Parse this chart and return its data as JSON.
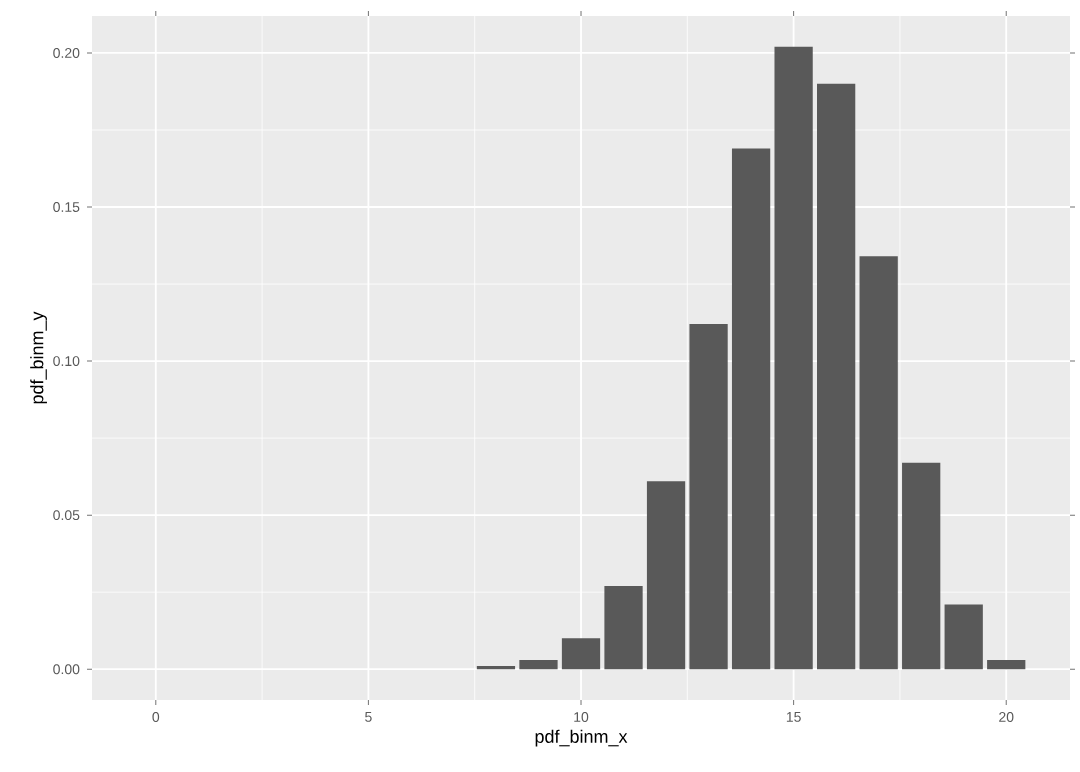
{
  "chart_data": {
    "type": "bar",
    "xlabel": "pdf_binm_x",
    "ylabel": "pdf_binm_y",
    "x": [
      8,
      9,
      10,
      11,
      12,
      13,
      14,
      15,
      16,
      17,
      18,
      19,
      20
    ],
    "values": [
      0.001,
      0.003,
      0.01,
      0.027,
      0.061,
      0.112,
      0.169,
      0.202,
      0.19,
      0.134,
      0.067,
      0.021,
      0.003
    ],
    "color": "#595959",
    "xlim": [
      -1.5,
      21.5
    ],
    "ylim": [
      -0.01,
      0.212
    ],
    "xticks": [
      0,
      5,
      10,
      15,
      20
    ],
    "yticks": [
      {
        "value": 0,
        "label": "0.00"
      },
      {
        "value": 0.05,
        "label": "0.05"
      },
      {
        "value": 0.1,
        "label": "0.10"
      },
      {
        "value": 0.15,
        "label": "0.15"
      },
      {
        "value": 0.2,
        "label": "0.20"
      }
    ],
    "grid": true
  }
}
